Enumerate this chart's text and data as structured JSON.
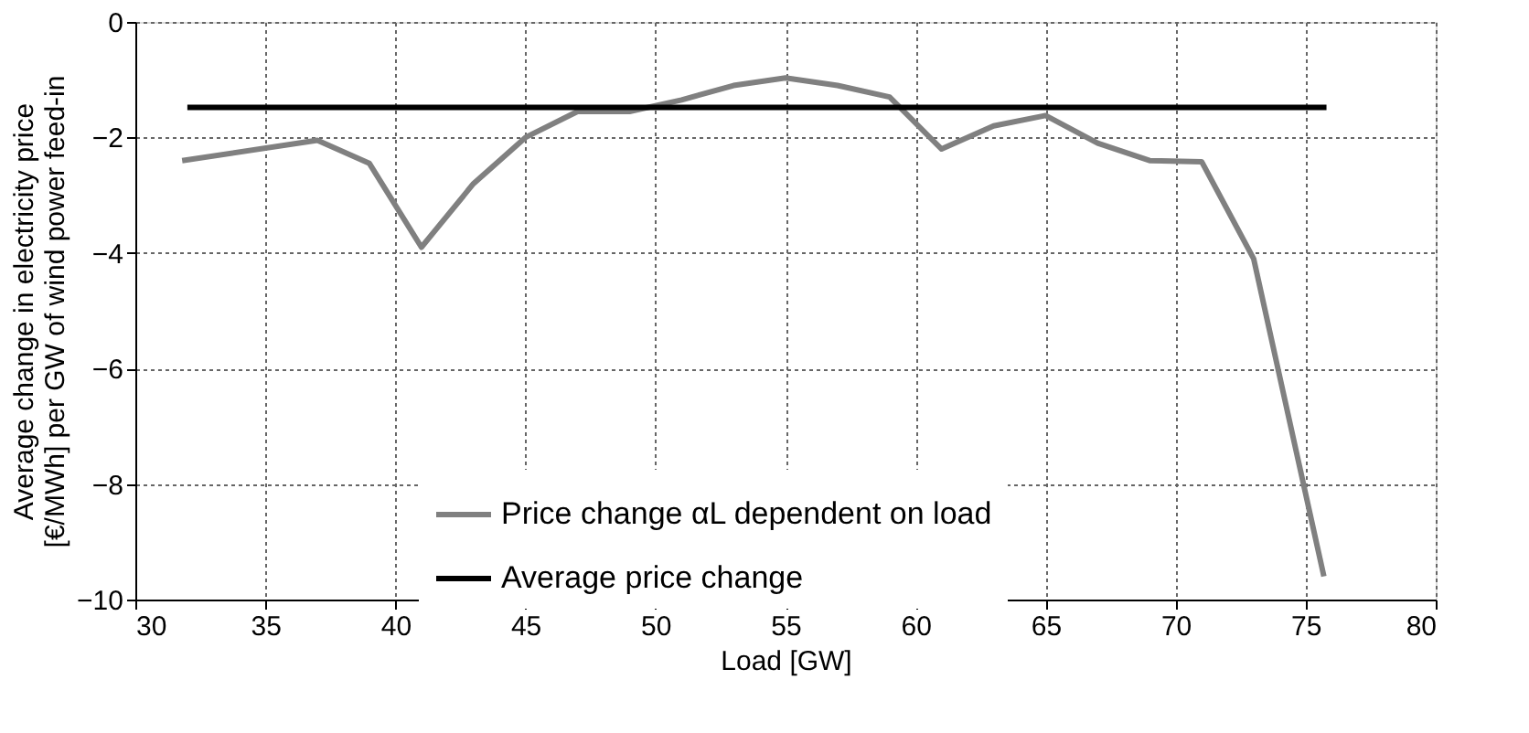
{
  "chart_data": {
    "type": "line",
    "xlabel": "Load [GW]",
    "ylabel": "Average change in electricity price\n[€/MWh] per GW of wind power feed-in",
    "xlim": [
      30,
      80
    ],
    "xticks": [
      30,
      35,
      40,
      45,
      50,
      55,
      60,
      65,
      70,
      75,
      80
    ],
    "ylim": [
      -10,
      0
    ],
    "yticks": [
      -10,
      -8,
      -6,
      -4,
      -2,
      0
    ],
    "grid": true,
    "legend": "bottom",
    "line_style": "solid",
    "series": [
      {
        "name": "Price change αL dependent on load",
        "color": "#808080",
        "x": [
          31.8,
          37,
          39,
          41,
          43,
          45,
          47,
          49,
          51,
          53,
          55,
          57,
          59,
          61,
          63,
          65,
          67,
          69,
          71,
          73,
          75.7
        ],
        "values": [
          -2.4,
          -2.05,
          -2.45,
          -3.9,
          -2.8,
          -2.0,
          -1.55,
          -1.55,
          -1.35,
          -1.1,
          -0.97,
          -1.1,
          -1.3,
          -2.2,
          -1.8,
          -1.62,
          -2.1,
          -2.4,
          -2.42,
          -4.1,
          -9.6
        ]
      },
      {
        "name": "Average price change",
        "color": "#000000",
        "x": [
          32,
          75.8
        ],
        "values": [
          -1.48,
          -1.48
        ]
      }
    ]
  }
}
